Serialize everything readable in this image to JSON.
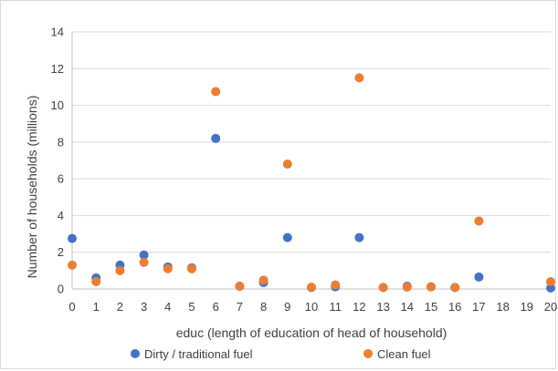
{
  "chart_data": {
    "type": "scatter",
    "title": "",
    "xlabel": "educ (length of education of head of household)",
    "ylabel": "Number of households (millions)",
    "xlim": [
      0,
      20
    ],
    "ylim": [
      0,
      14
    ],
    "x_ticks": [
      "0",
      "1",
      "2",
      "3",
      "4",
      "5",
      "6",
      "7",
      "8",
      "9",
      "10",
      "11",
      "12",
      "13",
      "14",
      "15",
      "16",
      "17",
      "18",
      "19",
      "20"
    ],
    "y_ticks": [
      "0",
      "2",
      "4",
      "6",
      "8",
      "10",
      "12",
      "14"
    ],
    "grid": "horizontal",
    "legend_position": "bottom",
    "series": [
      {
        "name": "Dirty / traditional fuel",
        "color": "#4472c4",
        "points": [
          {
            "x": 0,
            "y": 2.75
          },
          {
            "x": 1,
            "y": 0.6
          },
          {
            "x": 2,
            "y": 1.3
          },
          {
            "x": 3,
            "y": 1.85
          },
          {
            "x": 4,
            "y": 1.2
          },
          {
            "x": 5,
            "y": 1.15
          },
          {
            "x": 6,
            "y": 8.2
          },
          {
            "x": 7,
            "y": 0.15
          },
          {
            "x": 8,
            "y": 0.35
          },
          {
            "x": 9,
            "y": 2.8
          },
          {
            "x": 10,
            "y": 0.08
          },
          {
            "x": 11,
            "y": 0.12
          },
          {
            "x": 12,
            "y": 2.8
          },
          {
            "x": 13,
            "y": 0.08
          },
          {
            "x": 14,
            "y": 0.15
          },
          {
            "x": 15,
            "y": 0.12
          },
          {
            "x": 16,
            "y": 0.08
          },
          {
            "x": 17,
            "y": 0.65
          },
          {
            "x": 20,
            "y": 0.05
          }
        ]
      },
      {
        "name": "Clean fuel",
        "color": "#ed7d31",
        "points": [
          {
            "x": 0,
            "y": 1.3
          },
          {
            "x": 1,
            "y": 0.4
          },
          {
            "x": 2,
            "y": 1.0
          },
          {
            "x": 3,
            "y": 1.45
          },
          {
            "x": 4,
            "y": 1.1
          },
          {
            "x": 5,
            "y": 1.1
          },
          {
            "x": 6,
            "y": 10.75
          },
          {
            "x": 7,
            "y": 0.15
          },
          {
            "x": 8,
            "y": 0.48
          },
          {
            "x": 9,
            "y": 6.8
          },
          {
            "x": 10,
            "y": 0.1
          },
          {
            "x": 11,
            "y": 0.22
          },
          {
            "x": 12,
            "y": 11.5
          },
          {
            "x": 13,
            "y": 0.08
          },
          {
            "x": 14,
            "y": 0.1
          },
          {
            "x": 15,
            "y": 0.12
          },
          {
            "x": 16,
            "y": 0.08
          },
          {
            "x": 17,
            "y": 3.7
          },
          {
            "x": 20,
            "y": 0.4
          }
        ]
      }
    ]
  }
}
